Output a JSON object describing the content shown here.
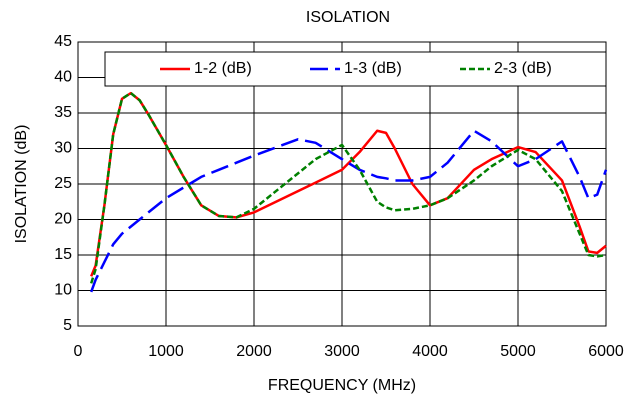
{
  "chart_data": {
    "type": "line",
    "title": "ISOLATION",
    "x_label": "FREQUENCY (MHz)",
    "y_label": "ISOLATION (dB)",
    "x": [
      150,
      200,
      300,
      400,
      500,
      600,
      700,
      800,
      1000,
      1200,
      1400,
      1600,
      1800,
      2000,
      2500,
      2700,
      3000,
      3200,
      3400,
      3500,
      3600,
      3800,
      4000,
      4200,
      4500,
      4700,
      5000,
      5200,
      5500,
      5700,
      5800,
      5900,
      6000
    ],
    "series": [
      {
        "name": "1-2 (dB)",
        "color": "#ff0000",
        "dash": "solid",
        "values": [
          12,
          13.5,
          22,
          32,
          37,
          37.8,
          36.8,
          34.8,
          30.5,
          26,
          22,
          20.5,
          20.3,
          21,
          24,
          25.2,
          27,
          29.5,
          32.5,
          32.2,
          30,
          25,
          22,
          23,
          27,
          28.5,
          30.2,
          29.5,
          25.5,
          19,
          15.5,
          15.3,
          16.3
        ]
      },
      {
        "name": "1-3 (dB)",
        "color": "#0000ff",
        "dash": "long-dash",
        "values": [
          9.8,
          11.5,
          14,
          16.5,
          18,
          19,
          20,
          21,
          23,
          24.5,
          26,
          27,
          28,
          29,
          31.3,
          30.8,
          28.5,
          27,
          26,
          25.8,
          25.5,
          25.5,
          26,
          28,
          32.5,
          31,
          27.5,
          28.5,
          31,
          26,
          23,
          23.5,
          27
        ]
      },
      {
        "name": "2-3 (dB)",
        "color": "#008000",
        "dash": "short-dash",
        "values": [
          11,
          13,
          22,
          32,
          37,
          37.8,
          36.8,
          34.8,
          30.5,
          26,
          22,
          20.5,
          20.3,
          21.5,
          26.5,
          28.5,
          30.5,
          27,
          22.5,
          21.7,
          21.3,
          21.5,
          22,
          23,
          25.5,
          27.5,
          29.8,
          28.5,
          24,
          18,
          15,
          14.8,
          15
        ]
      }
    ],
    "xlim": [
      0,
      6000
    ],
    "xticks": [
      0,
      1000,
      2000,
      3000,
      4000,
      5000,
      6000
    ],
    "ylim": [
      5,
      45
    ],
    "yticks": [
      5,
      10,
      15,
      20,
      25,
      30,
      35,
      40,
      45
    ],
    "grid": true
  }
}
